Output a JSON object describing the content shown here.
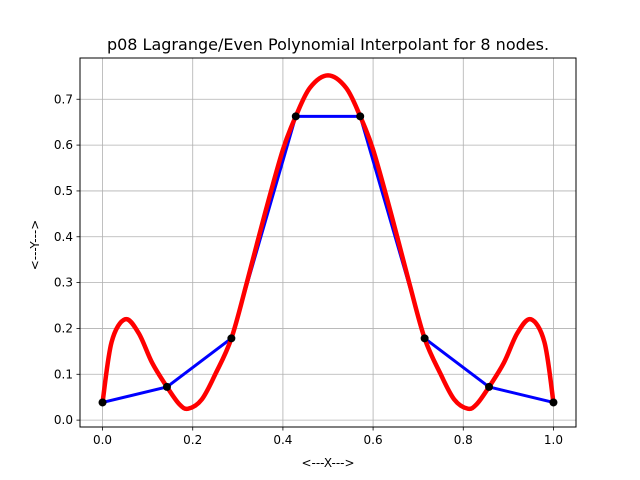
{
  "chart_data": {
    "type": "line",
    "title": "p08 Lagrange/Even Polynomial Interpolant for 8 nodes.",
    "xlabel": "<---X--->",
    "ylabel": "<---Y--->",
    "xlim": [
      -0.05,
      1.05
    ],
    "ylim": [
      -0.015,
      0.79
    ],
    "x_ticks": [
      "0.0",
      "0.2",
      "0.4",
      "0.6",
      "0.8",
      "1.0"
    ],
    "y_ticks": [
      "0.0",
      "0.1",
      "0.2",
      "0.3",
      "0.4",
      "0.5",
      "0.6",
      "0.7"
    ],
    "grid": true,
    "series": [
      {
        "kind": "piecewise-linear",
        "color": "#0000ff",
        "x": [
          0.0,
          0.142857,
          0.285714,
          0.428571,
          0.571429,
          0.714286,
          0.857143,
          1.0
        ],
        "y": [
          0.0385,
          0.0724,
          0.1784,
          0.6627,
          0.6627,
          0.1784,
          0.0724,
          0.0385
        ]
      },
      {
        "kind": "interpolant",
        "color": "#ff0000",
        "x": [
          0.0,
          0.02,
          0.05,
          0.08,
          0.11,
          0.142857,
          0.17,
          0.19,
          0.22,
          0.25,
          0.285714,
          0.32,
          0.36,
          0.4,
          0.428571,
          0.46,
          0.5,
          0.54,
          0.571429,
          0.6,
          0.64,
          0.68,
          0.714286,
          0.75,
          0.78,
          0.81,
          0.83,
          0.857143,
          0.89,
          0.92,
          0.95,
          0.98,
          1.0
        ],
        "y": [
          0.0385,
          0.17,
          0.22,
          0.19,
          0.125,
          0.0724,
          0.035,
          0.025,
          0.045,
          0.1,
          0.1784,
          0.3,
          0.45,
          0.59,
          0.6627,
          0.725,
          0.752,
          0.725,
          0.6627,
          0.59,
          0.45,
          0.3,
          0.1784,
          0.1,
          0.045,
          0.025,
          0.035,
          0.0724,
          0.125,
          0.19,
          0.22,
          0.17,
          0.0385
        ]
      },
      {
        "kind": "nodes",
        "color": "#000000",
        "x": [
          0.0,
          0.142857,
          0.285714,
          0.428571,
          0.571429,
          0.714286,
          0.857143,
          1.0
        ],
        "y": [
          0.0385,
          0.0724,
          0.1784,
          0.6627,
          0.6627,
          0.1784,
          0.0724,
          0.0385
        ]
      }
    ]
  }
}
